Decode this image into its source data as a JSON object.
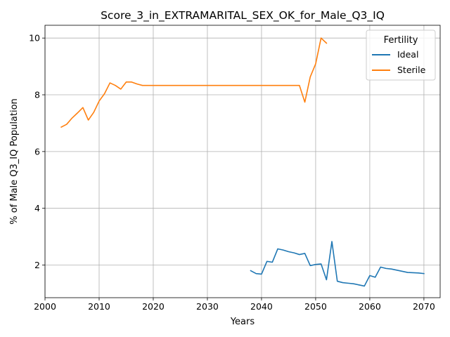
{
  "chart_data": {
    "type": "line",
    "title": "Score_3_in_EXTRAMARITAL_SEX_OK_for_Male_Q3_IQ",
    "xlabel": "Years",
    "ylabel": "% of Male Q3_IQ Population",
    "xlim": [
      2000,
      2073
    ],
    "ylim": [
      0.85,
      10.45
    ],
    "xticks": [
      2000,
      2010,
      2020,
      2030,
      2040,
      2050,
      2060,
      2070
    ],
    "yticks": [
      2,
      4,
      6,
      8,
      10
    ],
    "grid": true,
    "legend": {
      "title": "Fertility",
      "placement": "top-right"
    },
    "series": [
      {
        "name": "Ideal",
        "color": "#1f77b4",
        "x": [
          2038,
          2039,
          2040,
          2041,
          2042,
          2043,
          2044,
          2045,
          2046,
          2047,
          2048,
          2049,
          2050,
          2051,
          2052,
          2053,
          2054,
          2055,
          2056,
          2057,
          2058,
          2059,
          2060,
          2061,
          2062,
          2063,
          2064,
          2065,
          2066,
          2067,
          2068,
          2069,
          2070
        ],
        "y": [
          1.8,
          1.7,
          1.68,
          2.13,
          2.1,
          2.57,
          2.53,
          2.47,
          2.43,
          2.37,
          2.41,
          1.98,
          2.02,
          2.04,
          1.48,
          2.83,
          1.43,
          1.38,
          1.36,
          1.34,
          1.3,
          1.26,
          1.63,
          1.57,
          1.93,
          1.88,
          1.86,
          1.82,
          1.78,
          1.74,
          1.73,
          1.72,
          1.7
        ]
      },
      {
        "name": "Sterile",
        "color": "#ff7f0e",
        "x": [
          2003,
          2004,
          2005,
          2006,
          2007,
          2008,
          2009,
          2010,
          2011,
          2012,
          2013,
          2014,
          2015,
          2016,
          2017,
          2018,
          2019,
          2020,
          2025,
          2030,
          2035,
          2040,
          2045,
          2046,
          2047,
          2048,
          2049,
          2050,
          2051,
          2052
        ],
        "y": [
          6.86,
          6.96,
          7.18,
          7.36,
          7.55,
          7.11,
          7.38,
          7.78,
          8.04,
          8.42,
          8.33,
          8.2,
          8.45,
          8.45,
          8.38,
          8.33,
          8.33,
          8.33,
          8.33,
          8.33,
          8.33,
          8.33,
          8.33,
          8.33,
          8.33,
          7.74,
          8.63,
          9.09,
          10.0,
          9.82
        ]
      }
    ]
  }
}
